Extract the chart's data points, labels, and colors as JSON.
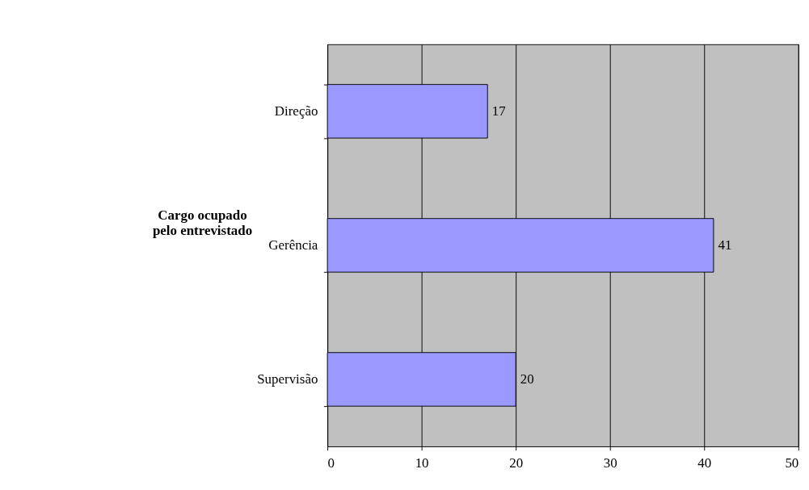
{
  "chart_data": {
    "type": "bar",
    "orientation": "horizontal",
    "ylabel": "Cargo ocupado pelo entrevistado",
    "categories": [
      "Direção",
      "Gerência",
      "Supervisão"
    ],
    "values": [
      17,
      41,
      20
    ],
    "color": "#9999ff",
    "xlim": [
      0,
      50
    ],
    "xticks": [
      0,
      10,
      20,
      30,
      40,
      50
    ],
    "grid": "x",
    "data_labels": true
  }
}
